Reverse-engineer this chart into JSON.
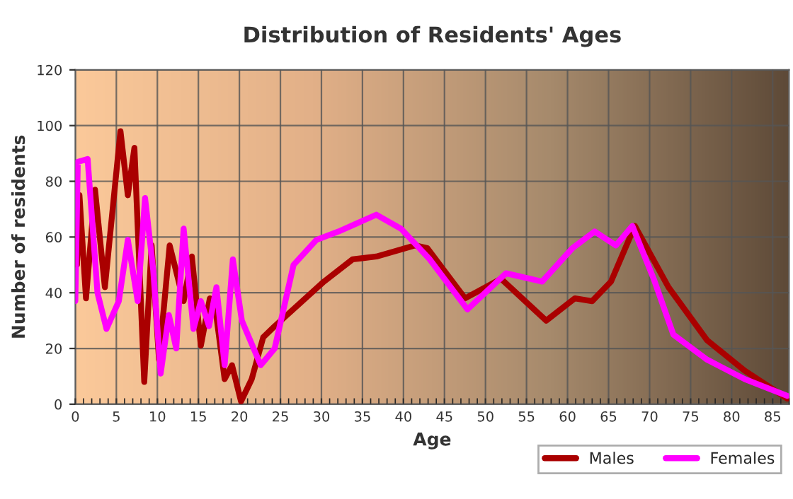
{
  "chart_data": {
    "type": "line",
    "title": "Distribution of Residents' Ages",
    "xlabel": "Age",
    "ylabel": "Number of residents",
    "xlim": [
      0,
      87
    ],
    "xticks": [
      0,
      5,
      10,
      15,
      20,
      25,
      30,
      35,
      40,
      45,
      50,
      55,
      60,
      65,
      70,
      75,
      80,
      85
    ],
    "ylim": [
      0,
      120
    ],
    "yticks": [
      0,
      20,
      40,
      60,
      80,
      100,
      120
    ],
    "grid": true,
    "legend": "bottom right",
    "line_style": "solid",
    "marker": "none",
    "series": [
      {
        "name": "Males",
        "color": "#aa0000",
        "x": [
          0.2,
          0.5,
          1.3,
          2.4,
          3.6,
          5.5,
          6.4,
          7.2,
          8.4,
          9.3,
          10.2,
          11.5,
          13.2,
          14.2,
          15.3,
          16.4,
          17,
          18.2,
          19.1,
          20.2,
          21.5,
          22.9,
          24.3,
          30.3,
          33.8,
          36.7,
          41.4,
          42.9,
          47.5,
          51.9,
          57.4,
          60.9,
          63,
          65.3,
          68.2,
          72.3,
          77,
          81.6,
          86.8
        ],
        "values": [
          50,
          75,
          38,
          77,
          42,
          98,
          75,
          92,
          8,
          57,
          16,
          57,
          37,
          53,
          21,
          38,
          36,
          9,
          14,
          1,
          9,
          24,
          28,
          44,
          52,
          53,
          57,
          56,
          38,
          45,
          30,
          38,
          37,
          44,
          64,
          42,
          23,
          12,
          2
        ]
      },
      {
        "name": "Females",
        "color": "#ff00ff",
        "x": [
          0,
          0.3,
          1.5,
          2.7,
          3.8,
          5.3,
          6.4,
          7.6,
          8.5,
          9.5,
          10.4,
          11.4,
          12.3,
          13.2,
          14.4,
          15.3,
          16.3,
          17.2,
          18.2,
          19.2,
          20.3,
          22.6,
          24.3,
          26.6,
          29.4,
          32.1,
          36.7,
          39.7,
          43.2,
          47.8,
          52.5,
          56.9,
          60.6,
          63.3,
          65.9,
          67.9,
          70.5,
          72.9,
          77,
          81.6,
          86.8
        ],
        "values": [
          37,
          87,
          88,
          40,
          27,
          37,
          59,
          37,
          74,
          48,
          11,
          32,
          20,
          63,
          27,
          37,
          28,
          42,
          14,
          52,
          30,
          14,
          20,
          50,
          59,
          62,
          68,
          63,
          52,
          34,
          47,
          44,
          56,
          62,
          57,
          64,
          45,
          25,
          16,
          9,
          3
        ]
      }
    ]
  }
}
